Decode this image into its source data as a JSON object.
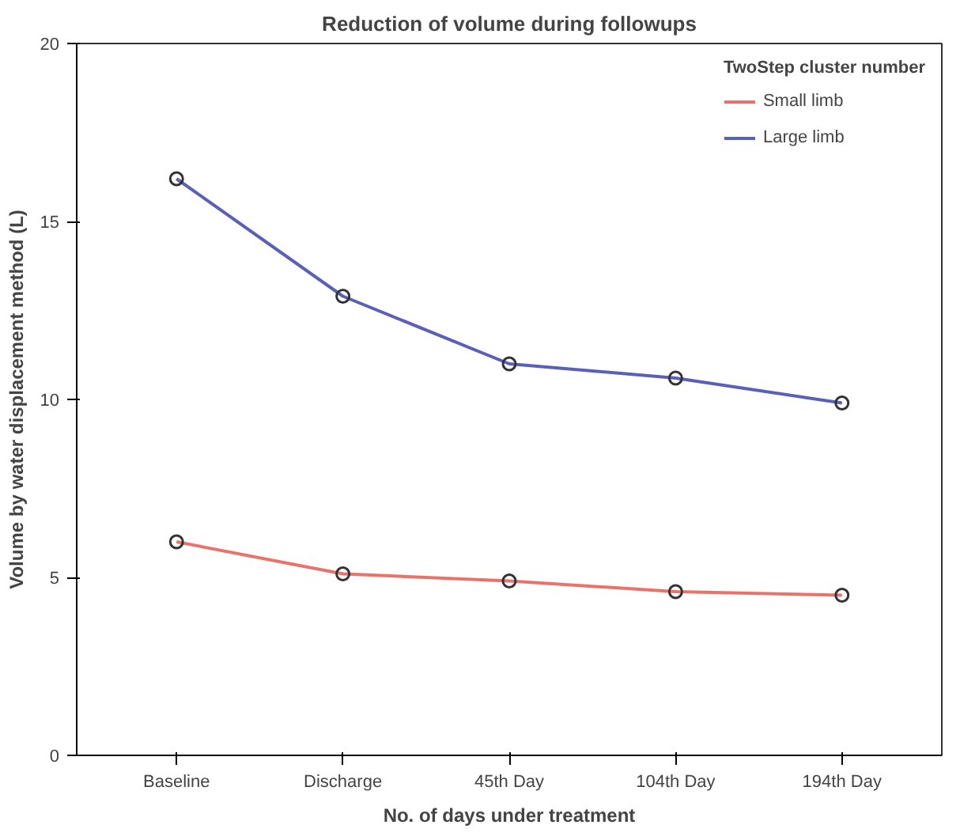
{
  "chart_data": {
    "type": "line",
    "title": "Reduction of volume during followups",
    "xlabel": "No. of days under treatment",
    "ylabel": "Volume by water displacement method (L)",
    "legend_title": "TwoStep cluster number",
    "categories": [
      "Baseline",
      "Discharge",
      "45th Day",
      "104th Day",
      "194th Day"
    ],
    "series": [
      {
        "name": "Small limb",
        "color": "#e8736a",
        "values": [
          6.0,
          5.1,
          4.9,
          4.6,
          4.5
        ]
      },
      {
        "name": "Large limb",
        "color": "#5a5fb8",
        "values": [
          16.2,
          12.9,
          11.0,
          10.6,
          9.9
        ]
      }
    ],
    "ylim": [
      0,
      20
    ],
    "yticks": [
      0,
      5,
      10,
      15,
      20
    ],
    "grid": false,
    "legend": "top right",
    "marker": "circle",
    "line_style": "solid"
  }
}
